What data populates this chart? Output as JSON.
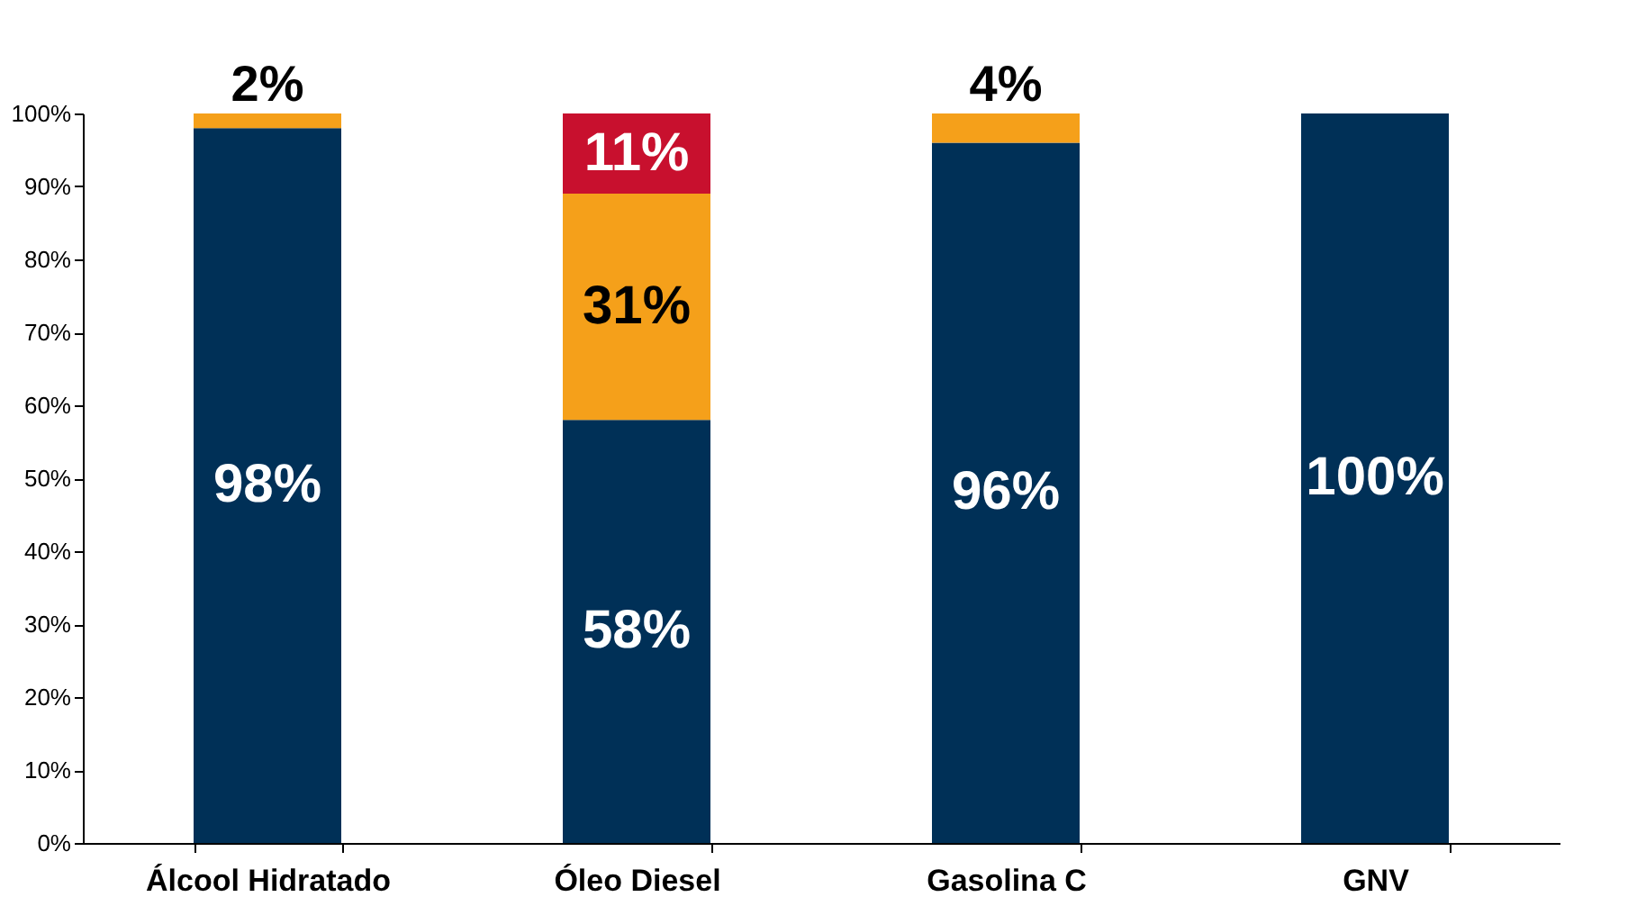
{
  "chart_data": {
    "type": "bar",
    "stacked": true,
    "categories": [
      "Álcool Hidratado",
      "Óleo Diesel",
      "Gasolina C",
      "GNV"
    ],
    "series": [
      {
        "color": "#003057",
        "values": [
          98,
          58,
          96,
          100
        ],
        "value_labels": [
          "98%",
          "58%",
          "96%",
          "100%"
        ]
      },
      {
        "color": "#f5a01a",
        "values": [
          2,
          31,
          4,
          null
        ],
        "value_labels": [
          "2%",
          "31%",
          "4%",
          null
        ]
      },
      {
        "color": "#c8102e",
        "values": [
          null,
          11,
          null,
          null
        ],
        "value_labels": [
          null,
          "11%",
          null,
          null
        ]
      }
    ],
    "ylim": [
      0,
      100
    ],
    "yticks": [
      {
        "value": 0,
        "label": "0%"
      },
      {
        "value": 10,
        "label": "10%"
      },
      {
        "value": 20,
        "label": "20%"
      },
      {
        "value": 30,
        "label": "30%"
      },
      {
        "value": 40,
        "label": "40%"
      },
      {
        "value": 50,
        "label": "50%"
      },
      {
        "value": 60,
        "label": "60%"
      },
      {
        "value": 70,
        "label": "70%"
      },
      {
        "value": 80,
        "label": "80%"
      },
      {
        "value": 90,
        "label": "90%"
      },
      {
        "value": 100,
        "label": "100%"
      }
    ],
    "grid": false
  }
}
